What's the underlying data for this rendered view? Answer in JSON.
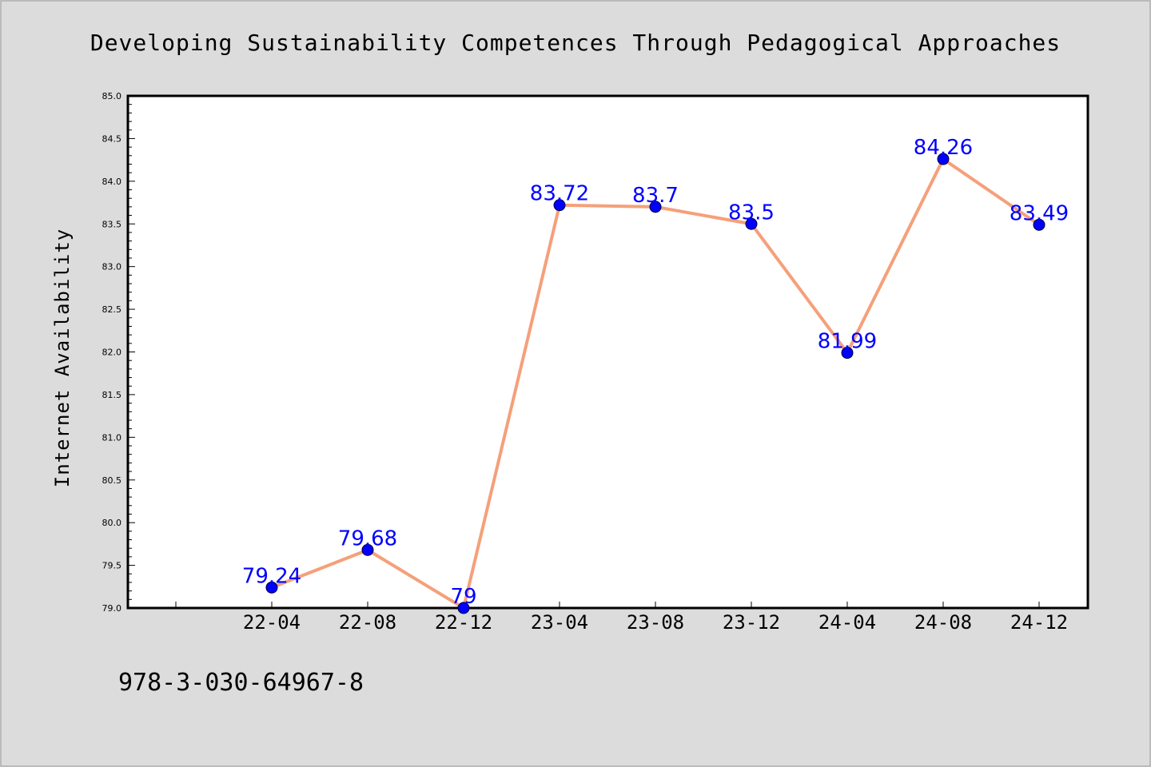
{
  "colors": {
    "background": "#dcdcdc",
    "plot_area": "#ffffff",
    "line": "#f5a07a",
    "marker": "#0000ff",
    "data_label": "#0000ff",
    "text": "#000000"
  },
  "footer_text": "978-3-030-64967-8",
  "chart_data": {
    "type": "line",
    "title": "Developing Sustainability Competences Through Pedagogical Approaches",
    "xlabel": "",
    "ylabel": "Internet Availability",
    "categories": [
      "22-04",
      "22-08",
      "22-12",
      "23-04",
      "23-08",
      "23-12",
      "24-04",
      "24-08",
      "24-12"
    ],
    "series": [
      {
        "values": [
          79.24,
          79.68,
          79,
          83.72,
          83.7,
          83.5,
          81.99,
          84.26,
          83.49
        ]
      }
    ],
    "data_labels": [
      "79.24",
      "79.68",
      "79",
      "83.72",
      "83.7",
      "83.5",
      "81.99",
      "84.26",
      "83.49"
    ],
    "ylim": [
      79.0,
      85.0
    ],
    "yticks": [
      "79.0",
      "79.5",
      "80.0",
      "80.5",
      "81.0",
      "81.5",
      "82.0",
      "82.5",
      "83.0",
      "83.5",
      "84.0",
      "84.5",
      "85.0"
    ],
    "grid": false,
    "legend": "none"
  }
}
